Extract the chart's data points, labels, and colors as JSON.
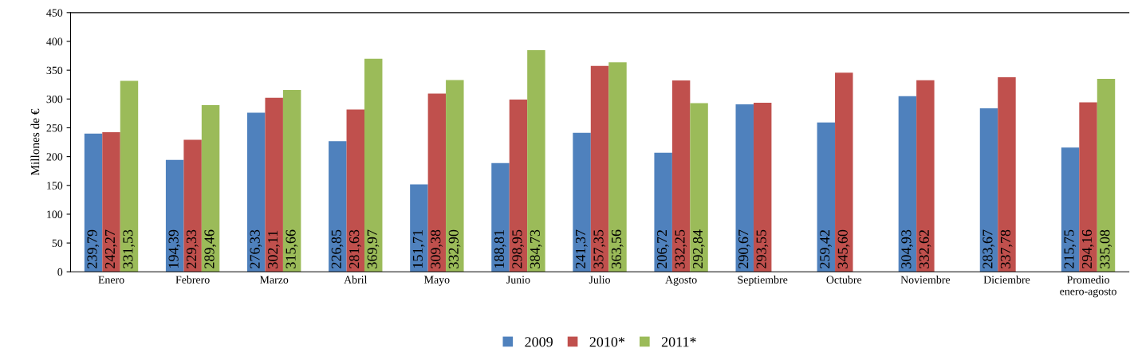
{
  "chart_data": {
    "type": "bar",
    "ylabel": "Millones de €",
    "categories": [
      "Enero",
      "Febrero",
      "Marzo",
      "Abril",
      "Mayo",
      "Junio",
      "Julio",
      "Agosto",
      "Septiembre",
      "Octubre",
      "Noviembre",
      "Diciembre",
      "Promedio\nenero-agosto"
    ],
    "series": [
      {
        "name": "2009",
        "color": "#4f81bd",
        "values": [
          239.79,
          194.39,
          276.33,
          226.85,
          151.71,
          188.81,
          241.37,
          206.72,
          290.67,
          259.42,
          304.93,
          283.67,
          215.75
        ],
        "value_labels": [
          "239,79",
          "194,39",
          "276,33",
          "226,85",
          "151,71",
          "188,81",
          "241,37",
          "206,72",
          "290,67",
          "259,42",
          "304,93",
          "283,67",
          "215,75"
        ]
      },
      {
        "name": "2010*",
        "color": "#c0504d",
        "values": [
          242.27,
          229.33,
          302.11,
          281.63,
          309.38,
          298.95,
          357.35,
          332.25,
          293.55,
          345.6,
          332.62,
          337.78,
          294.16
        ],
        "value_labels": [
          "242,27",
          "229,33",
          "302,11",
          "281,63",
          "309,38",
          "298,95",
          "357,35",
          "332,25",
          "293,55",
          "345,60",
          "332,62",
          "337,78",
          "294,16"
        ]
      },
      {
        "name": "2011*",
        "color": "#9bbb59",
        "values": [
          331.53,
          289.46,
          315.66,
          369.97,
          332.9,
          384.73,
          363.56,
          292.84,
          null,
          null,
          null,
          null,
          335.08
        ],
        "value_labels": [
          "331,53",
          "289,46",
          "315,66",
          "369,97",
          "332,90",
          "384,73",
          "363,56",
          "292,84",
          null,
          null,
          null,
          null,
          "335,08"
        ]
      }
    ],
    "ylim": [
      0,
      450
    ],
    "yticks": [
      0,
      50,
      100,
      150,
      200,
      250,
      300,
      350,
      400,
      450
    ],
    "grid": false,
    "legend": "bottom"
  }
}
